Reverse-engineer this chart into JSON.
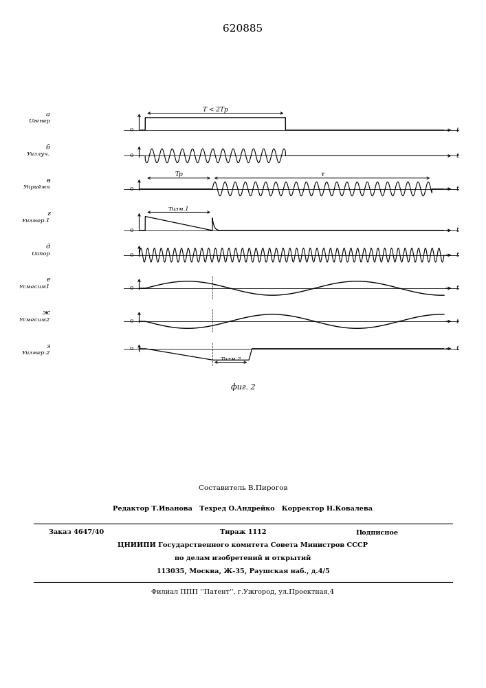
{
  "title_number": "620885",
  "figure_label": "фиг. 2",
  "background_color": "#ffffff",
  "line_color": "#000000",
  "subplot_letters": [
    "a",
    "б",
    "в",
    "г",
    "д",
    "е",
    "ж",
    "з"
  ],
  "signal_labels": [
    "Uгенер",
    "Уизлуч.",
    "Уприёмн",
    "Уизмер.1",
    "Uапор",
    "Усмесим1",
    "Усмесим2",
    "Уизмер.2"
  ],
  "footer_line1": "Составитель В.Пирогов",
  "footer_line2": "Редактор Т.Иванова   Техред О.Андрейко   Корректор Н.Ковалева",
  "footer_line3a": "Заказ 4647/40",
  "footer_line3b": "Тираж 1112",
  "footer_line3c": "Подписное",
  "footer_line4": "ЦНИИПИ Государственного комитета Совета Министров СССР",
  "footer_line5": "по делам изобретений и открытий",
  "footer_line6": "113035, Москва, Ж-35, Раушская наб., д.4/5",
  "footer_line7": "Филиал ППП ''Патент'', г.Ужгород, ул.Проектная,4"
}
